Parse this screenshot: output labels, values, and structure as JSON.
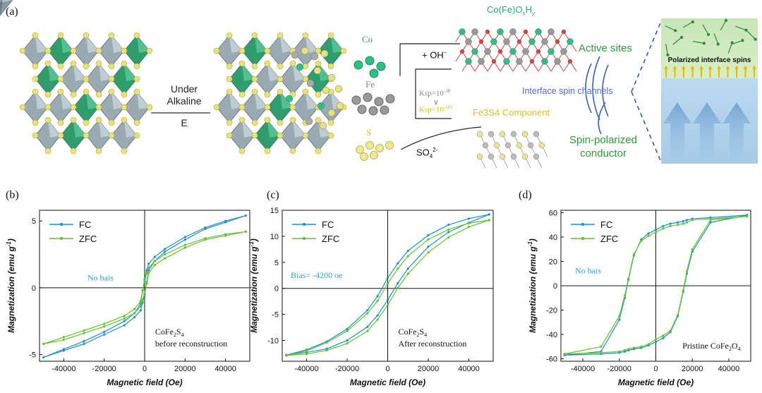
{
  "panels": {
    "a": "(a)",
    "b": "(b)",
    "c": "(c)",
    "d": "(d)"
  },
  "schematic": {
    "condition_line1": "Under",
    "condition_line2": "Alkaline",
    "condition_e": "E",
    "ion_co": "Co",
    "ion_fe": "Fe",
    "ion_s": "S",
    "oh_label": "+ OH",
    "oh_charge": "−",
    "ksp1": "Ksp=10",
    "ksp1_exp": "-38",
    "ksp_compare": "∨",
    "ksp2": "Ksp=10",
    "ksp2_exp": "-101",
    "sulfate": "SO",
    "sulfate_sub": "4",
    "sulfate_sup": "2-",
    "hydroxide_title": "Co(Fe)O",
    "hydroxide_x": "x",
    "hydroxide_h": "H",
    "hydroxide_y": "y",
    "fe3s4_component": "Fe3S4 Component",
    "active_sites": "Active sites",
    "interface_channels": "Interface spin channels",
    "spin_conductor_line1": "Spin-polarized",
    "spin_conductor_line2": "conductor",
    "polarized_spins": "Polarized interface spins"
  },
  "colors": {
    "fc": "#1f8fcf",
    "zfc": "#63c22c",
    "annotation_blue": "#2ba3c9",
    "green_text": "#2f9a3c",
    "channel_blue": "#4a6fc4",
    "fe3s4_yellow": "#e0c020",
    "teal": "#2aa884",
    "ksp_yellow": "#e8b800"
  },
  "chart_data": [
    {
      "type": "line",
      "panel": "(b)",
      "xlabel": "Magnetic field (Oe)",
      "ylabel": "Magnetization (emu g",
      "ylabel_sup": "-1",
      "xlim": [
        -52000,
        52000
      ],
      "ylim": [
        -5.5,
        5.8
      ],
      "xticks": [
        -40000,
        -20000,
        0,
        20000,
        40000
      ],
      "xtick_labels": [
        "-40000",
        "-20000",
        "0",
        "20000",
        "40000"
      ],
      "yticks": [
        -5,
        0,
        5
      ],
      "ytick_labels": [
        "-5",
        "0",
        "5"
      ],
      "annotation": "No bais",
      "sample_line1": "CoFe",
      "sample_sub1": "2",
      "sample_mid": "S",
      "sample_sub2": "4",
      "sample_line2": "before reconstruction",
      "series": [
        {
          "name": "FC",
          "x": [
            -50000,
            -40000,
            -30000,
            -20000,
            -10000,
            -5000,
            -2000,
            -1000,
            0,
            1000,
            2000,
            5000,
            10000,
            20000,
            30000,
            40000,
            50000
          ],
          "upper": [
            -5.2,
            -4.6,
            -4.0,
            -3.3,
            -2.5,
            -1.9,
            -1.2,
            -0.2,
            0.6,
            1.3,
            1.8,
            2.3,
            2.9,
            3.8,
            4.5,
            5.0,
            5.4
          ],
          "lower": [
            -5.2,
            -4.7,
            -4.2,
            -3.5,
            -2.8,
            -2.2,
            -1.7,
            -1.1,
            -0.5,
            0.4,
            1.3,
            2.0,
            2.7,
            3.6,
            4.4,
            4.9,
            5.4
          ]
        },
        {
          "name": "ZFC",
          "x": [
            -50000,
            -40000,
            -30000,
            -20000,
            -10000,
            -5000,
            -2000,
            -1000,
            0,
            1000,
            2000,
            5000,
            10000,
            20000,
            30000,
            40000,
            50000
          ],
          "upper": [
            -4.2,
            -3.7,
            -3.2,
            -2.7,
            -2.1,
            -1.6,
            -1.0,
            -0.2,
            0.5,
            1.1,
            1.5,
            2.0,
            2.5,
            3.2,
            3.7,
            4.0,
            4.2
          ],
          "lower": [
            -4.2,
            -3.9,
            -3.4,
            -2.9,
            -2.3,
            -1.9,
            -1.4,
            -0.9,
            -0.4,
            0.3,
            1.1,
            1.7,
            2.2,
            3.0,
            3.6,
            3.9,
            4.2
          ]
        }
      ]
    },
    {
      "type": "line",
      "panel": "(c)",
      "xlabel": "Magnetic field (Oe)",
      "ylabel": "Magnetization (emu g",
      "ylabel_sup": "-1",
      "xlim": [
        -52000,
        52000
      ],
      "ylim": [
        -14,
        15
      ],
      "xticks": [
        -40000,
        -20000,
        0,
        20000,
        40000
      ],
      "xtick_labels": [
        "-40000",
        "-20000",
        "0",
        "20000",
        "40000"
      ],
      "yticks": [
        -10,
        -5,
        0,
        5,
        10,
        15
      ],
      "ytick_labels": [
        "-10",
        "-5",
        "0",
        "5",
        "10",
        "15"
      ],
      "annotation": "Bias= -4200 oe",
      "sample_line1": "CoFe",
      "sample_sub1": "2",
      "sample_mid": "S",
      "sample_sub2": "4",
      "sample_line2": "After reconstruction",
      "series": [
        {
          "name": "FC",
          "x": [
            -50000,
            -40000,
            -30000,
            -20000,
            -10000,
            -5000,
            0,
            5000,
            10000,
            20000,
            30000,
            40000,
            50000
          ],
          "upper": [
            -12.8,
            -11.8,
            -10.2,
            -7.8,
            -4.2,
            -1.5,
            2.0,
            4.8,
            7.2,
            10.2,
            12.2,
            13.4,
            14.2
          ],
          "lower": [
            -12.8,
            -12.3,
            -11.6,
            -10.0,
            -7.4,
            -5.2,
            -2.2,
            1.0,
            3.8,
            8.0,
            10.8,
            12.6,
            14.2
          ]
        },
        {
          "name": "ZFC",
          "x": [
            -50000,
            -40000,
            -30000,
            -20000,
            -10000,
            -5000,
            0,
            5000,
            10000,
            20000,
            30000,
            40000,
            50000
          ],
          "upper": [
            -12.9,
            -12.0,
            -10.4,
            -8.2,
            -4.8,
            -2.4,
            0.9,
            3.8,
            6.2,
            9.4,
            11.3,
            12.5,
            13.1
          ],
          "lower": [
            -12.9,
            -12.6,
            -11.9,
            -10.6,
            -8.2,
            -6.0,
            -3.2,
            0.1,
            2.8,
            6.9,
            9.8,
            11.8,
            13.1
          ]
        }
      ]
    },
    {
      "type": "line",
      "panel": "(d)",
      "xlabel": "Magnetic field (Oe)",
      "ylabel": "Magnetization (emu g",
      "ylabel_sup": "-1",
      "xlim": [
        -52000,
        52000
      ],
      "ylim": [
        -62,
        62
      ],
      "xticks": [
        -40000,
        -20000,
        0,
        20000,
        40000
      ],
      "xtick_labels": [
        "-40000",
        "-20000",
        "0",
        "20000",
        "40000"
      ],
      "yticks": [
        -60,
        -40,
        -20,
        0,
        20,
        40,
        60
      ],
      "ytick_labels": [
        "-60",
        "-40",
        "-20",
        "0",
        "20",
        "40",
        "60"
      ],
      "annotation": "No bais",
      "sample_line1": "Pristine CoFe",
      "sample_sub1": "2",
      "sample_mid": "O",
      "sample_sub2": "4",
      "sample_line2": "",
      "series": [
        {
          "name": "FC",
          "x": [
            -50000,
            -30000,
            -20000,
            -17000,
            -15000,
            -12000,
            -8000,
            -4000,
            0,
            4000,
            8000,
            12000,
            15000,
            17000,
            20000,
            30000,
            50000
          ],
          "upper": [
            -57,
            -54,
            -28,
            -10,
            5,
            25,
            38,
            43,
            46,
            49,
            51,
            52,
            53,
            54,
            55,
            56,
            58
          ],
          "lower": [
            -57,
            -56,
            -55,
            -54,
            -53,
            -52,
            -51,
            -49,
            -46,
            -43,
            -38,
            -25,
            -5,
            10,
            28,
            52,
            58
          ]
        },
        {
          "name": "ZFC",
          "x": [
            -50000,
            -30000,
            -20000,
            -17000,
            -15000,
            -12000,
            -8000,
            -4000,
            0,
            4000,
            8000,
            12000,
            15000,
            17000,
            20000,
            30000,
            50000
          ],
          "upper": [
            -56,
            -50,
            -25,
            -8,
            6,
            26,
            37,
            41,
            44,
            47,
            49,
            50,
            51,
            52,
            54,
            55,
            57
          ],
          "lower": [
            -56,
            -55,
            -54,
            -53,
            -52,
            -51,
            -50,
            -48,
            -44,
            -41,
            -37,
            -24,
            -4,
            12,
            30,
            54,
            57
          ]
        }
      ]
    }
  ]
}
